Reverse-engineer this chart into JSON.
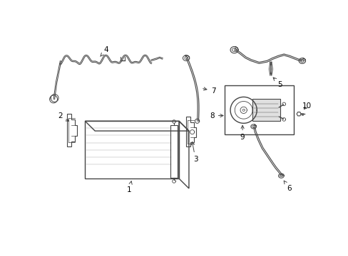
{
  "bg_color": "#ffffff",
  "line_color": "#444444",
  "label_color": "#000000",
  "lw": 1.0
}
